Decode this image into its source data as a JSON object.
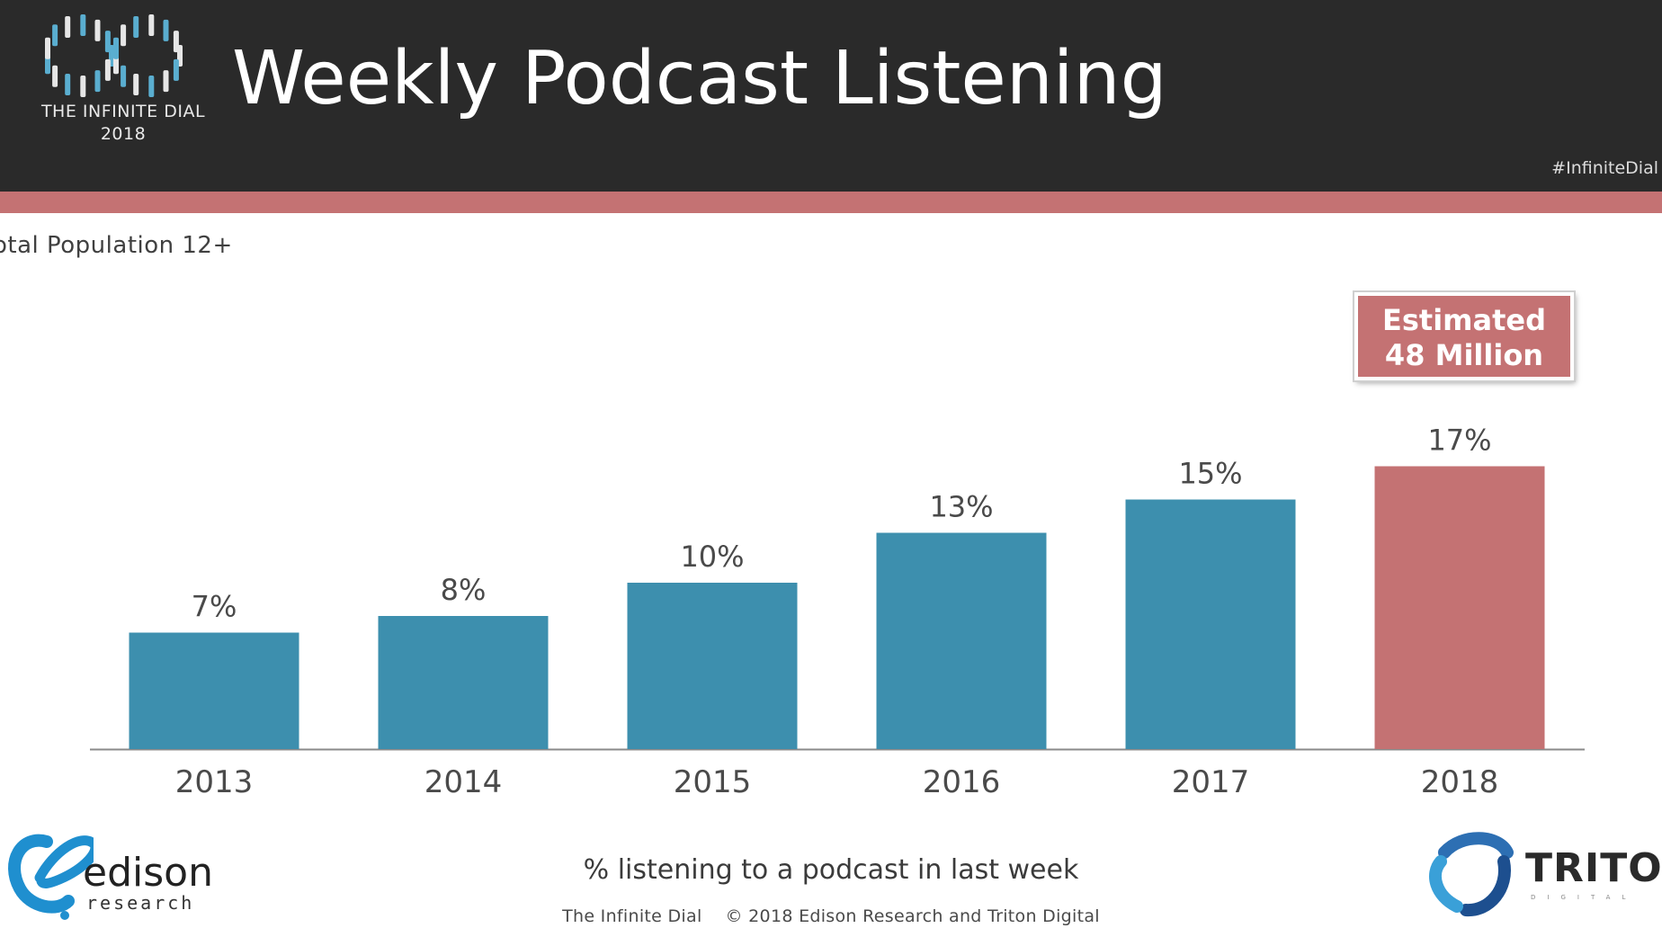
{
  "header": {
    "title": "Weekly Podcast Listening",
    "logo_line1": "THE INFINITE DIAL",
    "logo_line2": "2018",
    "hashtag": "#InfiniteDial"
  },
  "subtitle": "otal Population 12+",
  "callout": {
    "line1": "Estimated",
    "line2": "48 Million"
  },
  "chart_data": {
    "type": "bar",
    "categories": [
      "2013",
      "2014",
      "2015",
      "2016",
      "2017",
      "2018"
    ],
    "values": [
      7,
      8,
      10,
      13,
      15,
      17
    ],
    "value_labels": [
      "7%",
      "8%",
      "10%",
      "13%",
      "15%",
      "17%"
    ],
    "highlighted_category": "2018",
    "colors": {
      "default": "#3d8fae",
      "highlight": "#c47273",
      "axis": "#8a8a8a",
      "label": "#4a4a4a"
    },
    "ylim": [
      0,
      60
    ],
    "grid": false,
    "xlabel": "% listening to a podcast in last week",
    "ylabel": ""
  },
  "footer": {
    "credit_left": "The Infinite Dial",
    "credit_right": "© 2018 Edison Research and Triton Digital"
  },
  "logos": {
    "edison_name": "edison",
    "edison_sub": "research",
    "triton_name": "TRITON",
    "triton_sub": "DIGITAL"
  },
  "colors": {
    "header_bg": "#2a2a2a",
    "accent_stripe": "#c47273",
    "edison_blue": "#1f8fcf",
    "triton_blue": "#2d6fb3"
  }
}
